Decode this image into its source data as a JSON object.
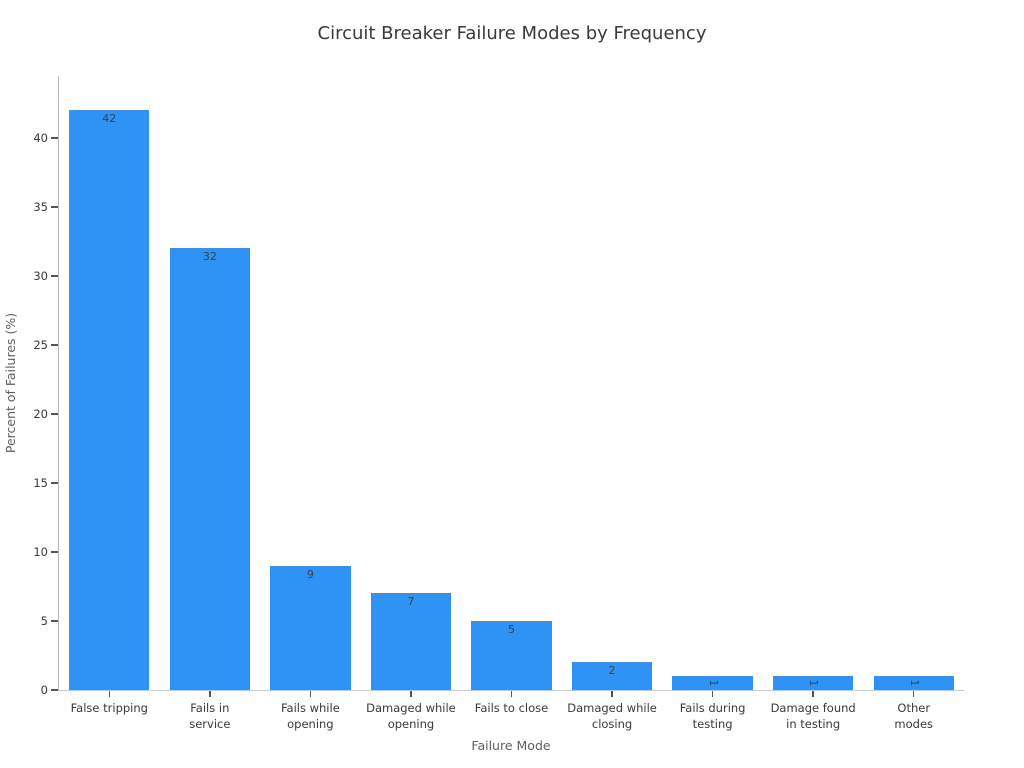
{
  "chart_data": {
    "type": "bar",
    "title": "Circuit Breaker Failure Modes by Frequency",
    "xlabel": "Failure Mode",
    "ylabel": "Percent of Failures (%)",
    "categories": [
      "False tripping",
      "Fails in\nservice",
      "Fails while\nopening",
      "Damaged while\nopening",
      "Fails to close",
      "Damaged while\nclosing",
      "Fails during\ntesting",
      "Damage found\nin testing",
      "Other\nmodes"
    ],
    "values": [
      42,
      32,
      9,
      7,
      5,
      2,
      1,
      1,
      1
    ],
    "bar_labels": [
      "42",
      "32",
      "9",
      "7",
      "5",
      "2",
      "1",
      "1",
      "1"
    ],
    "yticks": [
      0,
      5,
      10,
      15,
      20,
      25,
      30,
      35,
      40
    ],
    "ylim": [
      0,
      44.5
    ],
    "bar_color": "#2f93f5",
    "bar_width_fraction": 0.8,
    "grid": false,
    "legend": null
  }
}
